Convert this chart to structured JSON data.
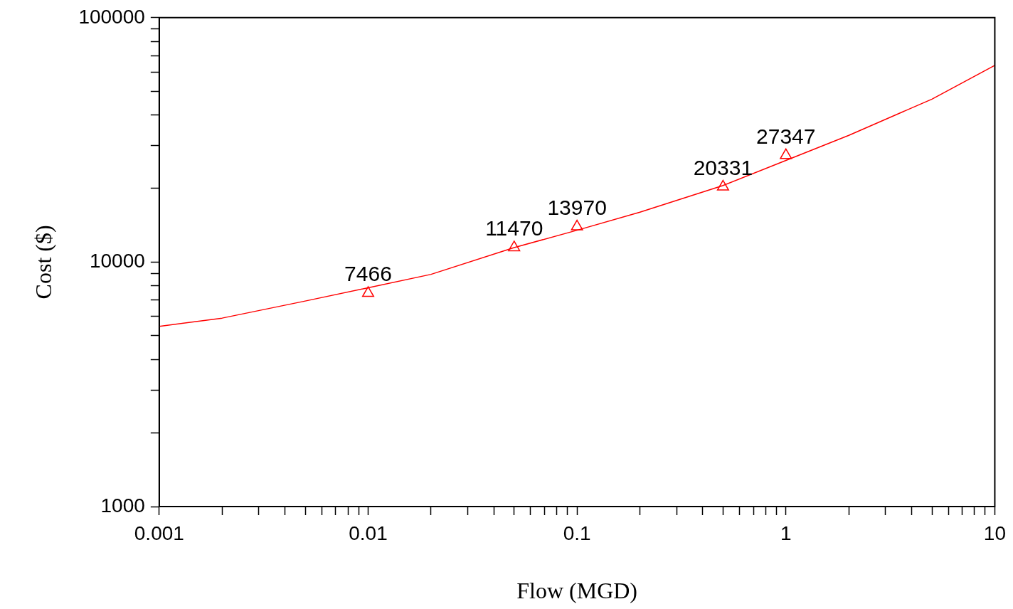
{
  "chart_data": {
    "type": "scatter",
    "xlabel": "Flow (MGD)",
    "ylabel": "Cost ($)",
    "log": "xy",
    "grid": false,
    "legend": false,
    "xlim": [
      0.001,
      10
    ],
    "ylim": [
      1000,
      100000
    ],
    "xticks": [
      0.001,
      {
        "value": 0.002,
        "label": null
      },
      {
        "value": 0.003,
        "label": null
      },
      {
        "value": 0.004,
        "label": null
      },
      {
        "value": 0.005,
        "label": null
      },
      {
        "value": 0.006,
        "label": null
      },
      {
        "value": 0.007,
        "label": null
      },
      {
        "value": 0.008,
        "label": null
      },
      {
        "value": 0.009,
        "label": null
      },
      0.01,
      {
        "value": 0.02,
        "label": null
      },
      {
        "value": 0.03,
        "label": null
      },
      {
        "value": 0.04,
        "label": null
      },
      {
        "value": 0.05,
        "label": null
      },
      {
        "value": 0.06,
        "label": null
      },
      {
        "value": 0.07,
        "label": null
      },
      {
        "value": 0.08,
        "label": null
      },
      {
        "value": 0.09,
        "label": null
      },
      0.1,
      {
        "value": 0.2,
        "label": null
      },
      {
        "value": 0.3,
        "label": null
      },
      {
        "value": 0.4,
        "label": null
      },
      {
        "value": 0.5,
        "label": null
      },
      {
        "value": 0.6,
        "label": null
      },
      {
        "value": 0.7,
        "label": null
      },
      {
        "value": 0.8,
        "label": null
      },
      {
        "value": 0.9,
        "label": null
      },
      1,
      {
        "value": 2,
        "label": null
      },
      {
        "value": 3,
        "label": null
      },
      {
        "value": 4,
        "label": null
      },
      {
        "value": 5,
        "label": null
      },
      {
        "value": 6,
        "label": null
      },
      {
        "value": 7,
        "label": null
      },
      {
        "value": 8,
        "label": null
      },
      {
        "value": 9,
        "label": null
      },
      10
    ],
    "yticks": [
      1000,
      {
        "value": 2000,
        "label": null
      },
      {
        "value": 3000,
        "label": null
      },
      {
        "value": 4000,
        "label": null
      },
      {
        "value": 5000,
        "label": null
      },
      {
        "value": 6000,
        "label": null
      },
      {
        "value": 7000,
        "label": null
      },
      {
        "value": 8000,
        "label": null
      },
      {
        "value": 9000,
        "label": null
      },
      10000,
      {
        "value": 20000,
        "label": null
      },
      {
        "value": 30000,
        "label": null
      },
      {
        "value": 40000,
        "label": null
      },
      {
        "value": 50000,
        "label": null
      },
      {
        "value": 60000,
        "label": null
      },
      {
        "value": 70000,
        "label": null
      },
      {
        "value": 80000,
        "label": null
      },
      {
        "value": 90000,
        "label": null
      },
      100000
    ],
    "series": [
      {
        "color": "#ff0000",
        "marker": "triangle",
        "x": [
          0.01,
          0.05,
          0.1,
          0.5,
          1
        ],
        "values": [
          7466,
          11470,
          13970,
          20331,
          27347
        ],
        "value_labels": [
          "7466",
          "11470",
          "13970",
          "20331",
          "27347"
        ]
      },
      {
        "type": "line",
        "color": "#ff0000",
        "marker": "none",
        "line_style": "solid",
        "x": [
          0.001,
          0.002,
          0.005,
          0.01,
          0.02,
          0.05,
          0.1,
          0.2,
          0.5,
          1,
          2,
          5,
          10
        ],
        "values": [
          5460,
          5900,
          6930,
          7850,
          8910,
          11460,
          13500,
          16000,
          20570,
          26060,
          33000,
          46400,
          63800
        ]
      }
    ]
  }
}
